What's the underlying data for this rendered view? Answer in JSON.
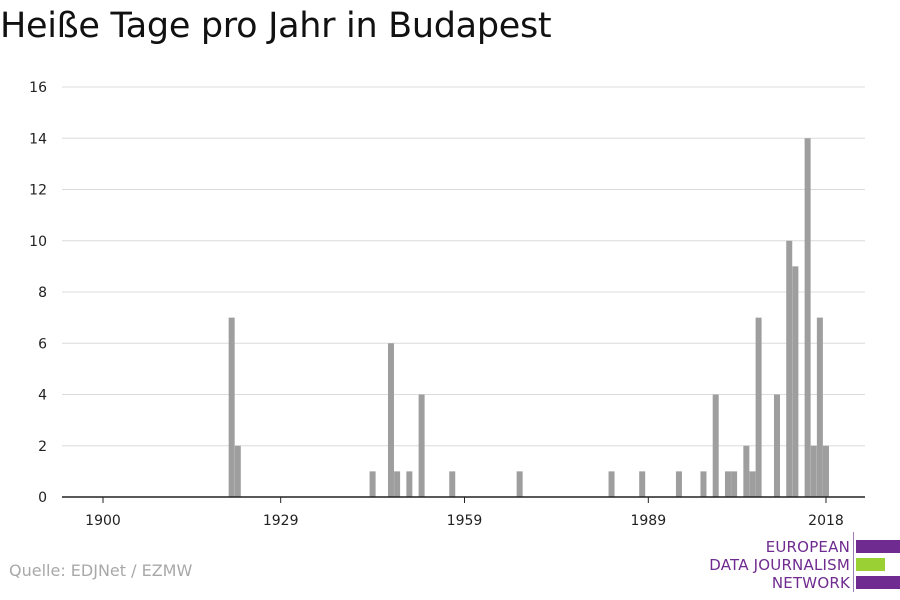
{
  "title": "Heiße Tage pro Jahr in Budapest",
  "source": "Quelle: EDJNet / EZMW",
  "logo": {
    "lines": [
      "EUROPEAN",
      "DATA JOURNALISM",
      "NETWORK"
    ],
    "colors": {
      "text": "#6f2b8f",
      "purple": "#6f2b8f",
      "green": "#9ad033"
    }
  },
  "colors": {
    "bar": "#9e9e9e",
    "grid": "#dcdcdc",
    "axis": "#222222"
  },
  "chart_data": {
    "type": "bar",
    "title": "Heiße Tage pro Jahr in Budapest",
    "xlabel": "",
    "ylabel": "",
    "xlim": [
      1900,
      2018
    ],
    "ylim": [
      0,
      16
    ],
    "x_ticks": [
      1900,
      1929,
      1959,
      1989,
      2018
    ],
    "y_ticks": [
      0,
      2,
      4,
      6,
      8,
      10,
      12,
      14,
      16
    ],
    "grid": true,
    "legend": "none",
    "x": [
      1921,
      1922,
      1944,
      1947,
      1948,
      1950,
      1952,
      1957,
      1968,
      1983,
      1988,
      1994,
      1998,
      2000,
      2002,
      2003,
      2005,
      2006,
      2007,
      2010,
      2012,
      2013,
      2015,
      2016,
      2017,
      2018
    ],
    "values": [
      7,
      2,
      1,
      6,
      1,
      1,
      4,
      1,
      1,
      1,
      1,
      1,
      1,
      4,
      1,
      1,
      2,
      1,
      7,
      4,
      10,
      9,
      14,
      2,
      7,
      2
    ]
  }
}
